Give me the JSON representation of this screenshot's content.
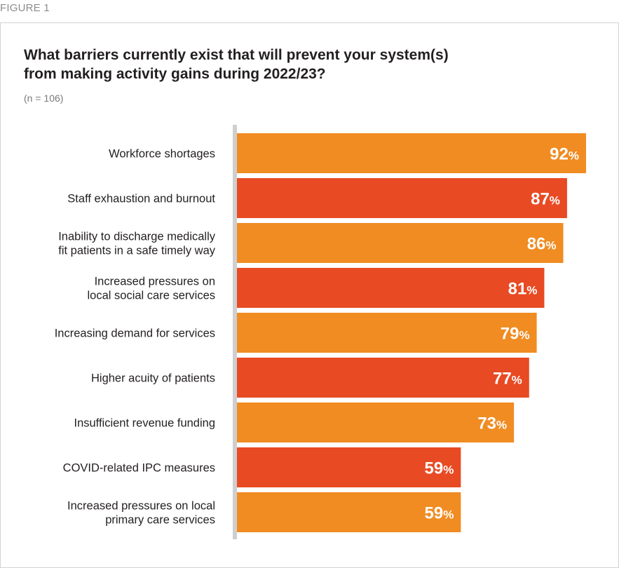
{
  "figure_label": "FIGURE 1",
  "chart_data": {
    "type": "bar",
    "orientation": "horizontal",
    "title": "What barriers currently exist that will prevent your system(s) from making activity gains during 2022/23?",
    "subtitle": "(n = 106)",
    "xlabel": "",
    "ylabel": "",
    "xlim": [
      0,
      100
    ],
    "unit": "%",
    "grid": false,
    "categories": [
      [
        "Workforce shortages"
      ],
      [
        "Staff exhaustion and burnout"
      ],
      [
        "Inability to discharge medically",
        "fit patients in a safe timely way"
      ],
      [
        "Increased pressures on",
        "local social care services"
      ],
      [
        "Increasing demand for services"
      ],
      [
        "Higher acuity of patients"
      ],
      [
        "Insufficient revenue funding"
      ],
      [
        "COVID-related IPC measures"
      ],
      [
        "Increased pressures on local",
        "primary care services"
      ]
    ],
    "values": [
      92,
      87,
      86,
      81,
      79,
      77,
      73,
      59,
      59
    ],
    "colors": [
      "#f08c22",
      "#e84a23",
      "#f08c22",
      "#e84a23",
      "#f08c22",
      "#e84a23",
      "#f08c22",
      "#e84a23",
      "#f08c22"
    ],
    "axis_color": "#cfcfcf"
  }
}
